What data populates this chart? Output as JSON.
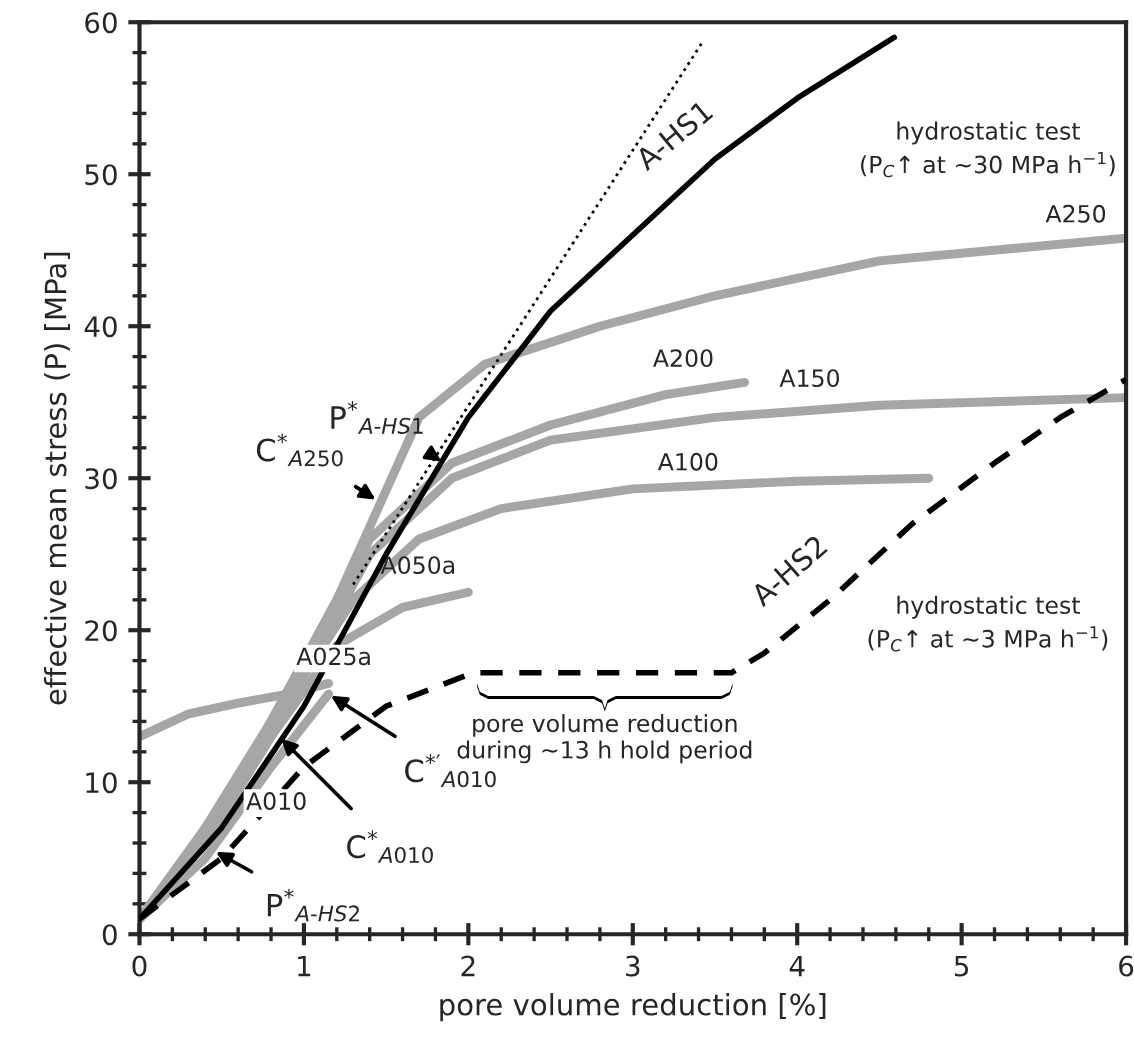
{
  "chart_data": {
    "type": "line",
    "xlabel": "pore volume reduction [%]",
    "ylabel": "effective mean stress (P) [MPa]",
    "xlim": [
      0,
      6
    ],
    "xticks": [
      0,
      1,
      2,
      3,
      4,
      5,
      6
    ],
    "ylim": [
      0,
      60
    ],
    "yticks": [
      0,
      10,
      20,
      30,
      40,
      50,
      60
    ],
    "grid": false,
    "legend": false,
    "marker": "none",
    "series": [
      {
        "name": "A250",
        "color": "#a6a6a6",
        "x": [
          0,
          0.4,
          0.8,
          1.2,
          1.45,
          1.7,
          2.1,
          2.8,
          3.5,
          4.5,
          6
        ],
        "values": [
          1,
          7,
          14,
          22,
          28,
          34,
          37.5,
          40,
          42,
          44.3,
          45.8
        ]
      },
      {
        "name": "A200",
        "color": "#a6a6a6",
        "x": [
          0,
          0.4,
          0.8,
          1.1,
          1.4,
          1.9,
          2.5,
          3.2,
          3.68
        ],
        "values": [
          1,
          6,
          14,
          20,
          26,
          31,
          33.5,
          35.5,
          36.3
        ]
      },
      {
        "name": "A150",
        "color": "#a6a6a6",
        "x": [
          0,
          0.4,
          0.8,
          1.1,
          1.4,
          1.9,
          2.5,
          3.5,
          4.5,
          6
        ],
        "values": [
          1,
          6,
          13,
          19,
          25,
          30,
          32.5,
          34,
          34.8,
          35.3
        ]
      },
      {
        "name": "A100",
        "color": "#a6a6a6",
        "x": [
          0,
          0.4,
          0.7,
          1.0,
          1.3,
          1.7,
          2.2,
          3,
          4,
          4.8
        ],
        "values": [
          1,
          6,
          12,
          17,
          22,
          26,
          28,
          29.3,
          29.8,
          30
        ]
      },
      {
        "name": "A050a",
        "color": "#a6a6a6",
        "x": [
          0,
          0.4,
          0.8,
          1.2,
          1.6,
          2.0
        ],
        "values": [
          1,
          6,
          13,
          19,
          21.5,
          22.5
        ]
      },
      {
        "name": "A025a",
        "color": "#a6a6a6",
        "x": [
          0,
          0.3,
          0.6,
          0.9,
          1.15
        ],
        "values": [
          13,
          14.5,
          15.2,
          15.8,
          16.5
        ]
      },
      {
        "name": "A010",
        "color": "#a6a6a6",
        "x": [
          0,
          0.4,
          0.8,
          1.15
        ],
        "values": [
          1,
          5,
          11,
          15.8
        ]
      },
      {
        "color": "#000000",
        "line_style": "dotted",
        "x": [
          1.3,
          3.43
        ],
        "values": [
          23,
          58.8
        ]
      },
      {
        "name": "A-HS2",
        "color": "#000000",
        "line_style": "dashed",
        "x": [
          0,
          0.5,
          1,
          1.5,
          2.03,
          3.6,
          3.8,
          4.2,
          4.7,
          5.2,
          5.6,
          6
        ],
        "values": [
          1,
          5,
          11,
          15,
          17.2,
          17.2,
          18.5,
          22,
          27,
          31,
          34,
          36.5
        ]
      },
      {
        "name": "A-HS1",
        "color": "#000000",
        "line_style": "solid",
        "x": [
          0,
          0.5,
          1,
          1.5,
          2,
          2.5,
          3,
          3.5,
          4,
          4.59
        ],
        "values": [
          1,
          7,
          15,
          25,
          34,
          41,
          46,
          51,
          55,
          59
        ]
      }
    ],
    "annotations": [
      "hydrostatic test\n(P$_{C}$↑ at ~30 MPa h$^{−1}$)",
      "hydrostatic test\n(P$_{C}$↑ at ~3 MPa h$^{−1}$)",
      {
        "text": "pore volume reduction\nduring ~13 h hold period",
        "x": 2.83,
        "y": 16.5
      },
      {
        "text": "C$^{*}$$_{A250}$",
        "x": 1.45,
        "y": 28.5
      },
      {
        "text": "P$^{*}$$_{A-HS1}$",
        "x": 1.85,
        "y": 31
      },
      {
        "text": "C$^{*′}$$_{A010}$",
        "x": 1.15,
        "y": 15.8
      },
      {
        "text": "C$^{*}$$_{A010}$",
        "x": 0.85,
        "y": 13
      },
      {
        "text": "P$^{*}$$_{A-HS2}$",
        "x": 0.45,
        "y": 5.5
      }
    ]
  }
}
